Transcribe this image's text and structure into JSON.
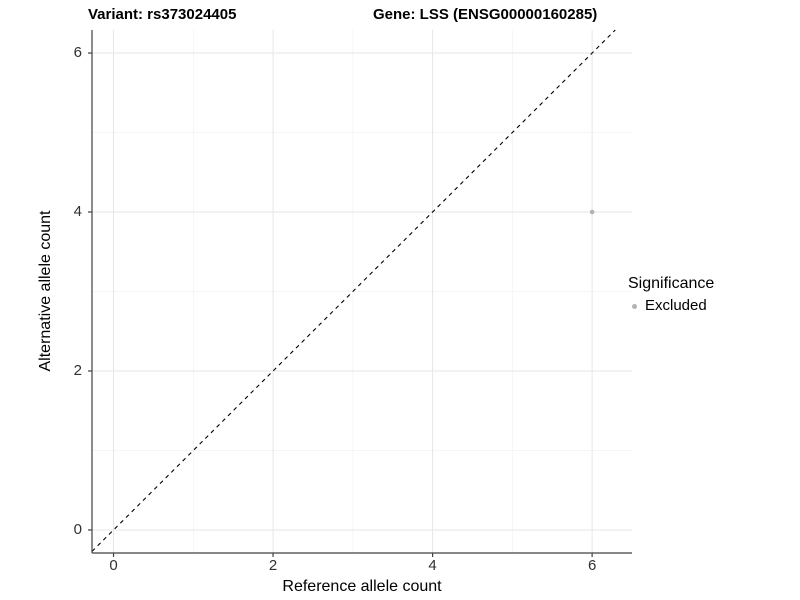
{
  "chart_data": {
    "type": "scatter",
    "titles": [
      "Variant: rs373024405",
      "Gene: LSS (ENSG00000160285)"
    ],
    "xlabel": "Reference allele count",
    "ylabel": "Alternative allele count",
    "xlim": [
      -0.27,
      6.5
    ],
    "ylim": [
      -0.29,
      6.29
    ],
    "x_ticks": [
      0,
      2,
      4,
      6
    ],
    "y_ticks": [
      0,
      2,
      4,
      6
    ],
    "x_minor_ticks": [
      1,
      3,
      5
    ],
    "y_minor_ticks": [
      1,
      3,
      5
    ],
    "grid": true,
    "points": [
      {
        "x": 6,
        "y": 4,
        "series": "Excluded"
      }
    ],
    "reference_line": {
      "slope": 1,
      "intercept": 0,
      "style": "dashed",
      "color": "#000000"
    },
    "legend": {
      "title": "Significance",
      "position": "right",
      "entries": [
        {
          "label": "Excluded",
          "color": "#b3b3b3"
        }
      ]
    },
    "style": {
      "background": "#ffffff",
      "major_grid_color": "#e6e6e6",
      "minor_grid_color": "#f2f2f2",
      "axis_line_color": "#404040",
      "tick_label_color": "#303030",
      "point_radius": 2.3
    }
  }
}
